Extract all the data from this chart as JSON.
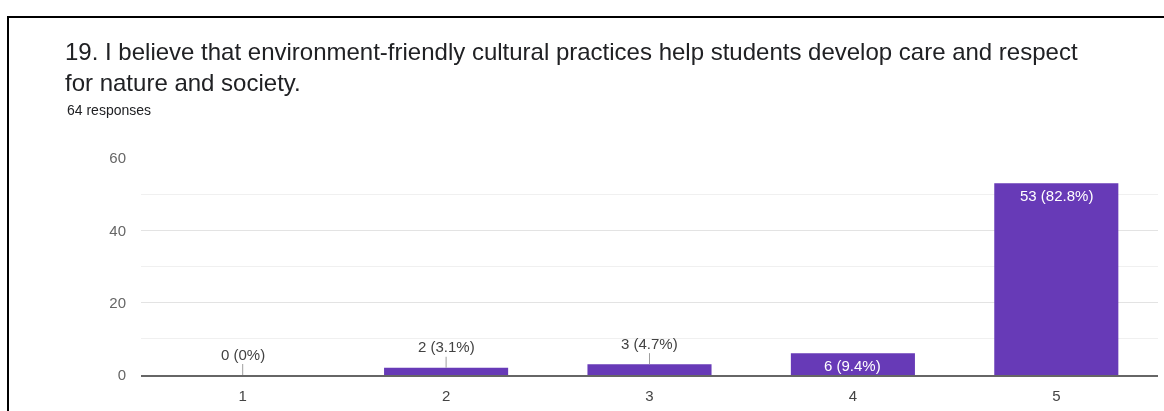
{
  "chart_data": {
    "type": "bar",
    "title": "19. I believe that environment-friendly cultural practices help students develop care and respect for nature and society.",
    "subtitle": "64 responses",
    "categories": [
      "1",
      "2",
      "3",
      "4",
      "5"
    ],
    "values": [
      0,
      2,
      3,
      6,
      53
    ],
    "color": "#673ab7",
    "value_labels": [
      "0 (0%)",
      "2 (3.1%)",
      "3 (4.7%)",
      "6 (9.4%)",
      "53 (82.8%)"
    ],
    "ylim": [
      0,
      60
    ],
    "yticks": [
      0,
      {
        "value": 10,
        "label": null
      },
      20,
      {
        "value": 30,
        "label": null
      },
      40,
      {
        "value": 50,
        "label": null
      },
      60
    ],
    "grid": "y"
  }
}
